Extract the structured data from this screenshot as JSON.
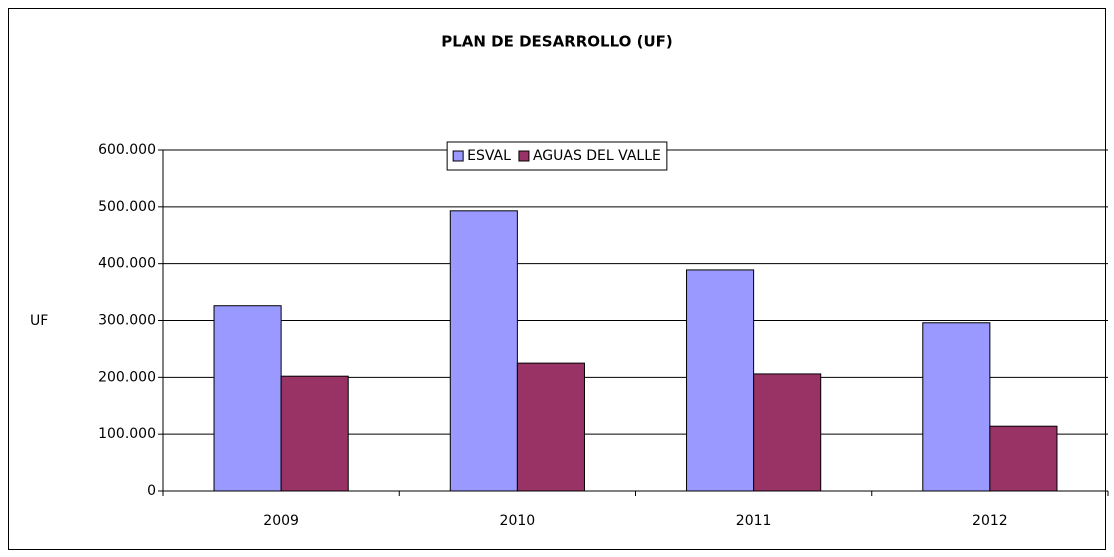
{
  "chart_data": {
    "type": "bar",
    "title": "PLAN DE DESARROLLO (UF)",
    "y_label": "UF",
    "categories": [
      "2009",
      "2010",
      "2011",
      "2012"
    ],
    "series": [
      {
        "name": "ESVAL",
        "color": "#9999ff",
        "values": [
          326000,
          493000,
          389000,
          296000
        ]
      },
      {
        "name": "AGUAS DEL VALLE",
        "color": "#993366",
        "values": [
          202000,
          225000,
          206000,
          114000
        ]
      }
    ],
    "ylim": [
      0,
      600000
    ],
    "yticks": [
      0,
      {
        "value": 100000,
        "label": "100.000"
      },
      {
        "value": 200000,
        "label": "200.000"
      },
      {
        "value": 300000,
        "label": "300.000"
      },
      {
        "value": 400000,
        "label": "400.000"
      },
      {
        "value": 500000,
        "label": "500.000"
      },
      {
        "value": 600000,
        "label": "600.000"
      }
    ],
    "grid": true,
    "legend": "top"
  }
}
